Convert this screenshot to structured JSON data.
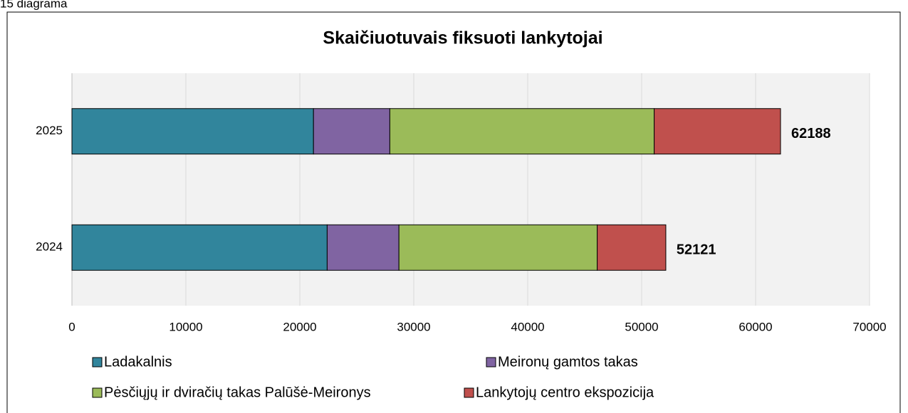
{
  "chart_data": {
    "type": "stacked_bar_horizontal",
    "caption": "15 diagrama",
    "title": "Skaičiuotuvais fiksuoti lankytojai",
    "categories": [
      "2025",
      "2024"
    ],
    "series": [
      {
        "name": "Ladakalnis",
        "color": "#31859c",
        "values": [
          21200,
          22400
        ]
      },
      {
        "name": "Meironų gamtos takas",
        "color": "#8064a2",
        "values": [
          6700,
          6300
        ]
      },
      {
        "name": "Pėsčiųjų ir dviračių takas Palūšė-Meironys",
        "color": "#9bbb59",
        "values": [
          23200,
          17400
        ]
      },
      {
        "name": "Lankytojų centro ekspozicija",
        "color": "#c0504d",
        "values": [
          11088,
          6021
        ]
      }
    ],
    "totals": [
      62188,
      52121
    ],
    "xlim": [
      0,
      70000
    ],
    "xticks": [
      0,
      10000,
      20000,
      30000,
      40000,
      50000,
      60000,
      70000
    ],
    "grid": true
  }
}
